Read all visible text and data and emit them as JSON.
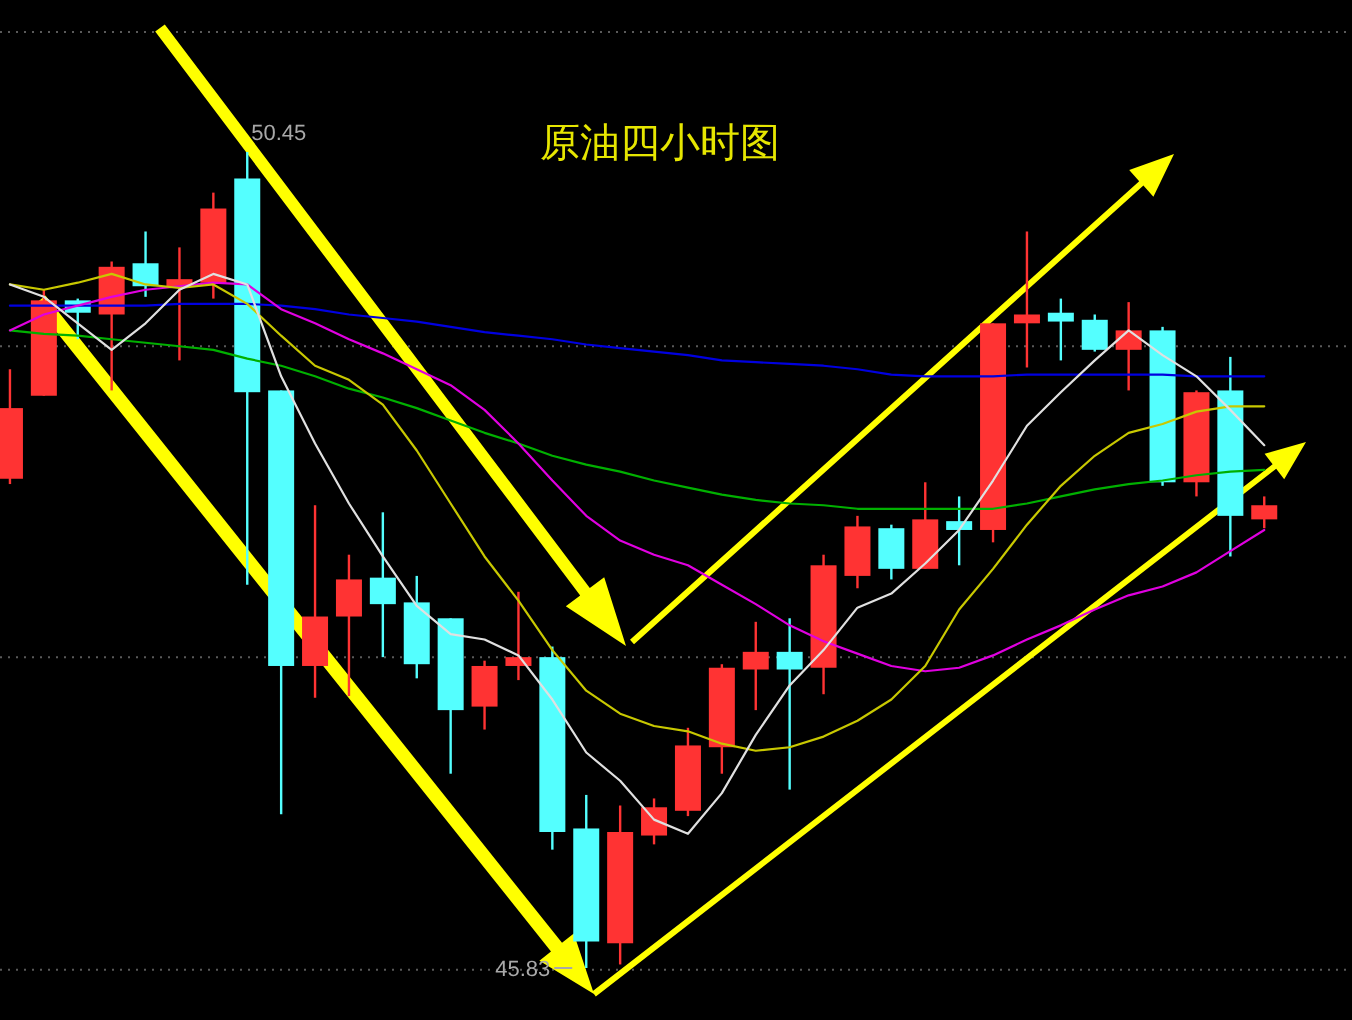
{
  "chart_data": {
    "type": "candlestick",
    "title": "原油四小时图",
    "categories": [
      null,
      null,
      null,
      null,
      null,
      null,
      null,
      null,
      null,
      null,
      null,
      null,
      null,
      null,
      null,
      null,
      null,
      null,
      null,
      null,
      null,
      null,
      null,
      null,
      null,
      null,
      null,
      null,
      null,
      null,
      null,
      null,
      null,
      null,
      null,
      null,
      null,
      null
    ],
    "ohlc": [
      [
        48.6,
        49.22,
        48.57,
        49.0
      ],
      [
        49.07,
        49.67,
        49.07,
        49.61
      ],
      [
        49.61,
        49.62,
        49.39,
        49.54
      ],
      [
        49.53,
        49.83,
        49.1,
        49.8
      ],
      [
        49.82,
        50.0,
        49.63,
        49.69
      ],
      [
        49.69,
        49.91,
        49.27,
        49.73
      ],
      [
        49.71,
        50.22,
        49.62,
        50.13
      ],
      [
        50.3,
        50.45,
        48.0,
        49.09
      ],
      [
        49.1,
        49.1,
        46.7,
        47.54
      ],
      [
        47.54,
        48.45,
        47.36,
        47.82
      ],
      [
        47.82,
        48.17,
        47.37,
        48.03
      ],
      [
        48.04,
        48.41,
        47.59,
        47.89
      ],
      [
        47.9,
        48.05,
        47.47,
        47.55
      ],
      [
        47.81,
        47.81,
        46.93,
        47.29
      ],
      [
        47.31,
        47.57,
        47.18,
        47.54
      ],
      [
        47.54,
        47.96,
        47.46,
        47.59
      ],
      [
        47.59,
        47.65,
        46.5,
        46.6
      ],
      [
        46.62,
        46.81,
        45.83,
        45.98
      ],
      [
        45.97,
        46.75,
        45.85,
        46.6
      ],
      [
        46.58,
        46.79,
        46.53,
        46.74
      ],
      [
        46.72,
        47.19,
        46.69,
        47.09
      ],
      [
        47.08,
        47.55,
        46.93,
        47.53
      ],
      [
        47.52,
        47.79,
        47.29,
        47.62
      ],
      [
        47.62,
        47.81,
        46.84,
        47.52
      ],
      [
        47.53,
        48.17,
        47.38,
        48.11
      ],
      [
        48.05,
        48.39,
        47.98,
        48.33
      ],
      [
        48.32,
        48.34,
        48.03,
        48.09
      ],
      [
        48.09,
        48.58,
        48.09,
        48.37
      ],
      [
        48.36,
        48.5,
        48.11,
        48.31
      ],
      [
        48.31,
        49.48,
        48.24,
        49.48
      ],
      [
        49.48,
        50.0,
        49.23,
        49.53
      ],
      [
        49.54,
        49.62,
        49.27,
        49.49
      ],
      [
        49.5,
        49.53,
        49.32,
        49.33
      ],
      [
        49.33,
        49.6,
        49.1,
        49.44
      ],
      [
        49.44,
        49.46,
        48.56,
        48.58
      ],
      [
        48.58,
        49.1,
        48.5,
        49.09
      ],
      [
        49.1,
        49.29,
        48.16,
        48.39
      ],
      [
        48.37,
        48.5,
        48.32,
        48.45
      ]
    ],
    "colors": [
      "#ff3333",
      "#ff3333",
      "#54ffff",
      "#ff3333",
      "#54ffff",
      "#ff3333",
      "#ff3333",
      "#54ffff",
      "#54ffff",
      "#ff3333",
      "#ff3333",
      "#54ffff",
      "#54ffff",
      "#54ffff",
      "#ff3333",
      "#ff3333",
      "#54ffff",
      "#54ffff",
      "#ff3333",
      "#ff3333",
      "#ff3333",
      "#ff3333",
      "#ff3333",
      "#54ffff",
      "#ff3333",
      "#ff3333",
      "#54ffff",
      "#ff3333",
      "#54ffff",
      "#ff3333",
      "#ff3333",
      "#54ffff",
      "#54ffff",
      "#ff3333",
      "#54ffff",
      "#ff3333",
      "#54ffff",
      "#ff3333"
    ],
    "series": [
      {
        "type": "line",
        "color": "#0000e0",
        "values": [
          49.58,
          49.58,
          49.58,
          49.58,
          49.58,
          49.59,
          49.59,
          49.59,
          49.58,
          49.56,
          49.53,
          49.51,
          49.49,
          49.46,
          49.43,
          49.41,
          49.39,
          49.36,
          49.34,
          49.32,
          49.3,
          49.27,
          49.26,
          49.25,
          49.24,
          49.22,
          49.19,
          49.18,
          49.18,
          49.18,
          49.19,
          49.19,
          49.19,
          49.19,
          49.19,
          49.18,
          49.18,
          49.18
        ]
      },
      {
        "type": "line",
        "color": "#00b000",
        "values": [
          49.44,
          49.42,
          49.41,
          49.39,
          49.37,
          49.35,
          49.33,
          49.28,
          49.24,
          49.18,
          49.11,
          49.06,
          49.0,
          48.93,
          48.86,
          48.8,
          48.73,
          48.68,
          48.64,
          48.59,
          48.55,
          48.51,
          48.48,
          48.46,
          48.45,
          48.43,
          48.43,
          48.43,
          48.43,
          48.43,
          48.46,
          48.5,
          48.54,
          48.57,
          48.59,
          48.62,
          48.64,
          48.65
        ]
      },
      {
        "type": "line",
        "color": "#e000e0",
        "values": [
          49.44,
          49.53,
          49.58,
          49.63,
          49.67,
          49.69,
          49.71,
          49.7,
          49.56,
          49.48,
          49.39,
          49.31,
          49.22,
          49.13,
          48.99,
          48.8,
          48.59,
          48.39,
          48.25,
          48.17,
          48.11,
          48.0,
          47.89,
          47.77,
          47.68,
          47.61,
          47.54,
          47.51,
          47.53,
          47.6,
          47.69,
          47.77,
          47.86,
          47.94,
          47.99,
          48.07,
          48.19,
          48.31
        ]
      },
      {
        "type": "line",
        "color": "#c8c800",
        "values": [
          49.7,
          49.67,
          49.71,
          49.76,
          49.7,
          49.68,
          49.7,
          49.59,
          49.41,
          49.24,
          49.16,
          49.02,
          48.76,
          48.46,
          48.16,
          47.91,
          47.63,
          47.4,
          47.27,
          47.2,
          47.17,
          47.1,
          47.06,
          47.08,
          47.14,
          47.23,
          47.35,
          47.54,
          47.86,
          48.09,
          48.34,
          48.56,
          48.73,
          48.86,
          48.91,
          48.98,
          49.01,
          49.01
        ]
      },
      {
        "type": "line",
        "color": "#e0e0e0",
        "values": [
          49.7,
          49.63,
          49.48,
          49.33,
          49.48,
          49.67,
          49.76,
          49.7,
          49.18,
          48.8,
          48.46,
          48.16,
          47.88,
          47.72,
          47.69,
          47.6,
          47.35,
          47.05,
          46.89,
          46.67,
          46.59,
          46.82,
          47.15,
          47.43,
          47.63,
          47.87,
          47.95,
          48.12,
          48.31,
          48.59,
          48.9,
          49.09,
          49.27,
          49.44,
          49.3,
          49.18,
          48.99,
          48.79
        ]
      }
    ],
    "yticks": [
      {
        "value": 51.13,
        "label": null
      },
      {
        "value": 49.35,
        "label": null
      },
      {
        "value": 47.59,
        "label": null
      },
      {
        "value": 45.82,
        "label": null
      }
    ],
    "grid": "y",
    "annotations": [
      "50.45",
      "45.83"
    ]
  }
}
